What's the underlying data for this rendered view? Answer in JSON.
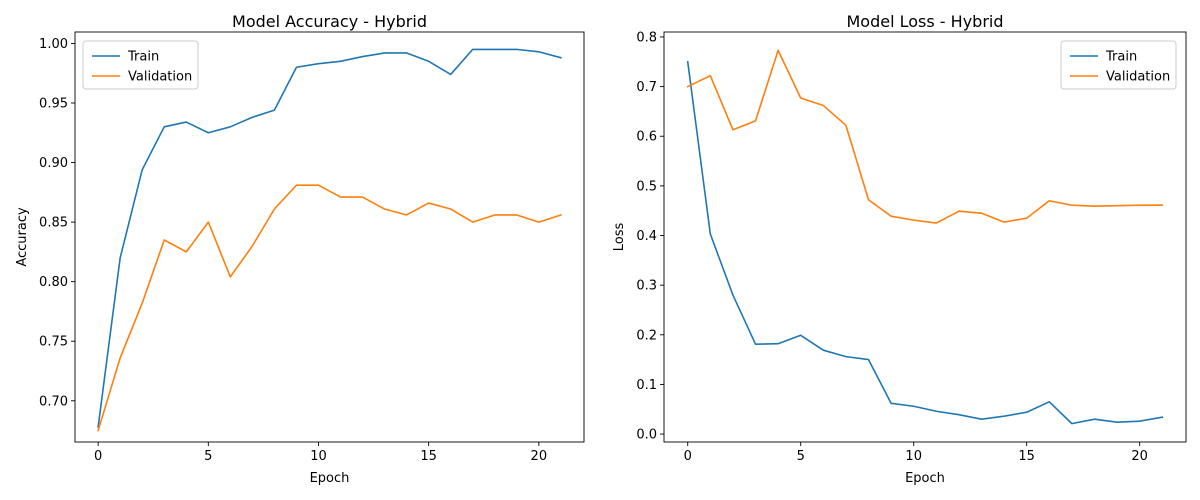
{
  "chart_data": [
    {
      "type": "line",
      "title": "Model Accuracy - Hybrid",
      "xlabel": "Epoch",
      "ylabel": "Accuracy",
      "xlim": [
        -1.05,
        22.05
      ],
      "ylim": [
        0.6654,
        1.0096
      ],
      "xticks": [
        0,
        5,
        10,
        15,
        20
      ],
      "yticks": [
        0.7,
        0.75,
        0.8,
        0.85,
        0.9,
        0.95,
        1.0
      ],
      "ytick_decimals": 2,
      "legend_position": "top-left",
      "series": [
        {
          "name": "Train",
          "color": "#1f77b4",
          "x": [
            0,
            1,
            2,
            3,
            4,
            5,
            6,
            7,
            8,
            9,
            10,
            11,
            12,
            13,
            14,
            15,
            16,
            17,
            18,
            19,
            20,
            21
          ],
          "values": [
            0.678,
            0.82,
            0.894,
            0.93,
            0.934,
            0.925,
            0.93,
            0.938,
            0.944,
            0.98,
            0.983,
            0.985,
            0.989,
            0.992,
            0.992,
            0.985,
            0.974,
            0.995,
            0.995,
            0.995,
            0.993,
            0.988
          ]
        },
        {
          "name": "Validation",
          "color": "#ff7f0e",
          "x": [
            0,
            1,
            2,
            3,
            4,
            5,
            6,
            7,
            8,
            9,
            10,
            11,
            12,
            13,
            14,
            15,
            16,
            17,
            18,
            19,
            20,
            21
          ],
          "values": [
            0.675,
            0.736,
            0.782,
            0.835,
            0.825,
            0.85,
            0.804,
            0.83,
            0.861,
            0.881,
            0.881,
            0.871,
            0.871,
            0.861,
            0.856,
            0.866,
            0.861,
            0.85,
            0.856,
            0.856,
            0.85,
            0.856
          ]
        }
      ]
    },
    {
      "type": "line",
      "title": "Model Loss - Hybrid",
      "xlabel": "Epoch",
      "ylabel": "Loss",
      "xlim": [
        -1.05,
        22.05
      ],
      "ylim": [
        -0.016,
        0.81
      ],
      "xticks": [
        0,
        5,
        10,
        15,
        20
      ],
      "yticks": [
        0.0,
        0.1,
        0.2,
        0.3,
        0.4,
        0.5,
        0.6,
        0.7,
        0.8
      ],
      "ytick_decimals": 1,
      "legend_position": "top-right",
      "series": [
        {
          "name": "Train",
          "color": "#1f77b4",
          "x": [
            0,
            1,
            2,
            3,
            4,
            5,
            6,
            7,
            8,
            9,
            10,
            11,
            12,
            13,
            14,
            15,
            16,
            17,
            18,
            19,
            20,
            21
          ],
          "values": [
            0.75,
            0.403,
            0.28,
            0.181,
            0.182,
            0.199,
            0.169,
            0.156,
            0.15,
            0.062,
            0.056,
            0.046,
            0.039,
            0.03,
            0.036,
            0.044,
            0.065,
            0.021,
            0.03,
            0.024,
            0.026,
            0.034
          ]
        },
        {
          "name": "Validation",
          "color": "#ff7f0e",
          "x": [
            0,
            1,
            2,
            3,
            4,
            5,
            6,
            7,
            8,
            9,
            10,
            11,
            12,
            13,
            14,
            15,
            16,
            17,
            18,
            19,
            20,
            21
          ],
          "values": [
            0.7,
            0.722,
            0.613,
            0.631,
            0.773,
            0.677,
            0.662,
            0.622,
            0.472,
            0.439,
            0.431,
            0.425,
            0.449,
            0.445,
            0.427,
            0.435,
            0.47,
            0.461,
            0.459,
            0.46,
            0.461,
            0.461
          ]
        }
      ]
    }
  ]
}
